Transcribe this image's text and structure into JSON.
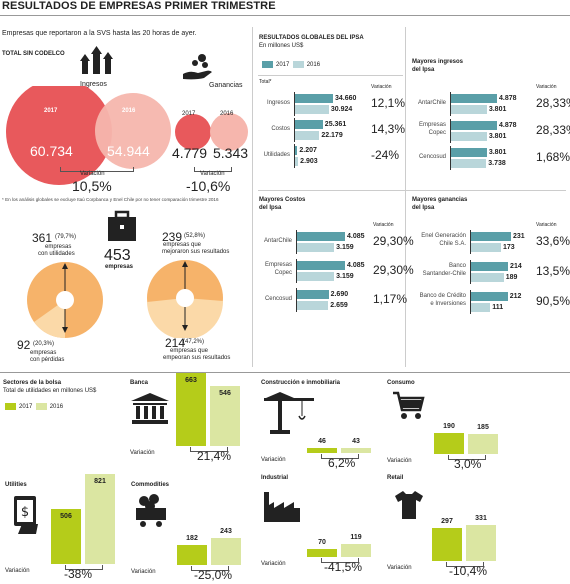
{
  "title": "RESULTADOS DE EMPRESAS PRIMER TRIMESTRE",
  "subtitle": "Empresas que reportaron a la SVS hasta las 20 horas de ayer.",
  "colors": {
    "red2017": "#e8595c",
    "red2016": "#f6b6ad",
    "teal2017": "#5a9fa8",
    "teal2016": "#b9d6da",
    "green2017": "#b5cc1a",
    "green2016": "#dbe6a2",
    "orange": "#f6b36a",
    "orangeLight": "#fbd9a8"
  },
  "total": {
    "label": "TOTAL SIN CODELCO",
    "ingresos_label": "Ingresos",
    "ganancias_label": "Ganancias",
    "ing_2017_year": "2017",
    "ing_2016_year": "2016",
    "ing_2017": "60.734",
    "ing_2016": "54.944",
    "ing_var_label": "Variación",
    "ing_var": "10,5%",
    "gan_2017_year": "2017",
    "gan_2016_year": "2016",
    "gan_2017": "4.779",
    "gan_2016": "5.343",
    "gan_var_label": "Variación",
    "gan_var": "-10,6%",
    "footnote": "* En los análisis globales se excluye Itaú Corpbanca y Enel Chile por no tener comparación trimestre 2016"
  },
  "companies": {
    "total": "453",
    "total_label": "empresas",
    "utilidades_count": "361",
    "utilidades_pct": "(79,7%)",
    "utilidades_label1": "empresas",
    "utilidades_label2": "con utilidades",
    "perdidas_count": "92",
    "perdidas_pct": "(20,3%)",
    "perdidas_label1": "empresas",
    "perdidas_label2": "con pérdidas",
    "mejoran_count": "239",
    "mejoran_pct": "(52,8%)",
    "mejoran_label1": "empresas que",
    "mejoran_label2": "mejoraron sus resultados",
    "empeoran_count": "214",
    "empeoran_pct": "(47,2%)",
    "empeoran_label1": "empresas que",
    "empeoran_label2": "empeoran sus resultados"
  },
  "ipsa": {
    "title": "RESULTADOS GLOBALES DEL IPSA",
    "unit": "En millones US$",
    "legend_2017": "2017",
    "legend_2016": "2016",
    "variacion": "Variación",
    "total_label": "Total*",
    "global": [
      {
        "name": "Ingresos",
        "v2017": "34.660",
        "v2016": "30.924",
        "var": "12,1%"
      },
      {
        "name": "Costos",
        "v2017": "25.361",
        "v2016": "22.179",
        "var": "14,3%"
      },
      {
        "name": "Utilidades",
        "v2017": "2.207",
        "v2016": "2.903",
        "var": "-24%"
      }
    ],
    "ingresos_title1": "Mayores ingresos",
    "ingresos_title2": "del Ipsa",
    "ingresos": [
      {
        "name1": "AntarChile",
        "name2": "",
        "v2017": "4.878",
        "v2016": "3.801",
        "var": "28,33%"
      },
      {
        "name1": "Empresas",
        "name2": "Copec",
        "v2017": "4.878",
        "v2016": "3.801",
        "var": "28,33%"
      },
      {
        "name1": "Cencosud",
        "name2": "",
        "v2017": "3.801",
        "v2016": "3.738",
        "var": "1,68%"
      }
    ],
    "costos_title1": "Mayores Costos",
    "costos_title2": "del Ipsa",
    "costos": [
      {
        "name1": "AntarChile",
        "name2": "",
        "v2017": "4.085",
        "v2016": "3.159",
        "var": "29,30%"
      },
      {
        "name1": "Empresas",
        "name2": "Copec",
        "v2017": "4.085",
        "v2016": "3.159",
        "var": "29,30%"
      },
      {
        "name1": "Cencosud",
        "name2": "",
        "v2017": "2.690",
        "v2016": "2.659",
        "var": "1,17%"
      }
    ],
    "ganancias_title1": "Mayores ganancias",
    "ganancias_title2": "del Ipsa",
    "ganancias": [
      {
        "name1": "Enel Generación",
        "name2": "Chile S.A.",
        "v2017": "231",
        "v2016": "173",
        "var": "33,6%"
      },
      {
        "name1": "Banco",
        "name2": "Santander-Chile",
        "v2017": "214",
        "v2016": "189",
        "var": "13,5%"
      },
      {
        "name1": "Banco de Crédito",
        "name2": "e Inversiones",
        "v2017": "212",
        "v2016": "111",
        "var": "90,5%"
      }
    ]
  },
  "sectores": {
    "title": "Sectores de la bolsa",
    "unit": "Total de utilidades en millones US$",
    "legend_2017": "2017",
    "legend_2016": "2016",
    "variacion": "Variación",
    "items": [
      {
        "name": "Banca",
        "v2017": "663",
        "v2016": "546",
        "var": "21,4%"
      },
      {
        "name": "Construcción e inmobiliaria",
        "v2017": "46",
        "v2016": "43",
        "var": "6,2%"
      },
      {
        "name": "Consumo",
        "v2017": "190",
        "v2016": "185",
        "var": "3,0%"
      },
      {
        "name": "Utilities",
        "v2017": "506",
        "v2016": "821",
        "var": "-38%"
      },
      {
        "name": "Commodities",
        "v2017": "182",
        "v2016": "243",
        "var": "-25,0%"
      },
      {
        "name": "Industrial",
        "v2017": "70",
        "v2016": "119",
        "var": "-41,5%"
      },
      {
        "name": "Retail",
        "v2017": "297",
        "v2016": "331",
        "var": "-10,4%"
      }
    ]
  },
  "chart_data": [
    {
      "type": "bar",
      "title": "RESULTADOS GLOBALES DEL IPSA",
      "categories": [
        "Ingresos",
        "Costos",
        "Utilidades"
      ],
      "series": [
        {
          "name": "2017",
          "values": [
            34660,
            25361,
            2207
          ]
        },
        {
          "name": "2016",
          "values": [
            30924,
            22179,
            2903
          ]
        }
      ]
    },
    {
      "type": "bar",
      "title": "Mayores ingresos del Ipsa",
      "categories": [
        "AntarChile",
        "Empresas Copec",
        "Cencosud"
      ],
      "series": [
        {
          "name": "2017",
          "values": [
            4878,
            4878,
            3801
          ]
        },
        {
          "name": "2016",
          "values": [
            3801,
            3801,
            3738
          ]
        }
      ]
    },
    {
      "type": "bar",
      "title": "Mayores Costos del Ipsa",
      "categories": [
        "AntarChile",
        "Empresas Copec",
        "Cencosud"
      ],
      "series": [
        {
          "name": "2017",
          "values": [
            4085,
            4085,
            2690
          ]
        },
        {
          "name": "2016",
          "values": [
            3159,
            3159,
            2659
          ]
        }
      ]
    },
    {
      "type": "bar",
      "title": "Mayores ganancias del Ipsa",
      "categories": [
        "Enel Generación Chile S.A.",
        "Banco Santander-Chile",
        "Banco de Crédito e Inversiones"
      ],
      "series": [
        {
          "name": "2017",
          "values": [
            231,
            214,
            212
          ]
        },
        {
          "name": "2016",
          "values": [
            173,
            189,
            111
          ]
        }
      ]
    },
    {
      "type": "bar",
      "title": "Sectores de la bolsa",
      "categories": [
        "Banca",
        "Construcción e inmobiliaria",
        "Consumo",
        "Utilities",
        "Commodities",
        "Industrial",
        "Retail"
      ],
      "series": [
        {
          "name": "2017",
          "values": [
            663,
            46,
            190,
            506,
            182,
            70,
            297
          ]
        },
        {
          "name": "2016",
          "values": [
            546,
            43,
            185,
            821,
            243,
            119,
            331
          ]
        }
      ]
    }
  ]
}
